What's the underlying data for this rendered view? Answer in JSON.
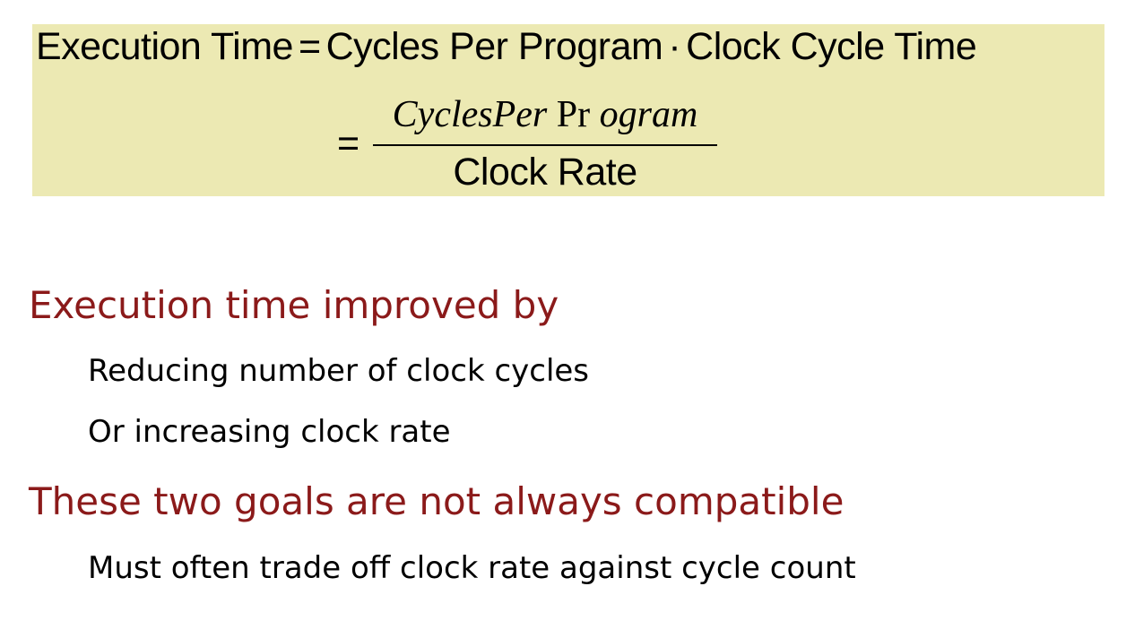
{
  "formula": {
    "line1": {
      "lhs": "Execution Time",
      "eq": "=",
      "term1": "Cycles Per Program",
      "dot": "·",
      "term2": "Clock Cycle Time"
    },
    "line2": {
      "eq": "=",
      "numerator": {
        "part1": "CyclesPer",
        "part2": "Pr",
        "part3": "ogram"
      },
      "denominator": "Clock Rate"
    }
  },
  "bullets": [
    {
      "heading": "Execution time improved by",
      "items": [
        "Reducing number of clock cycles",
        "Or increasing clock rate"
      ]
    },
    {
      "heading": "These two goals are not always compatible",
      "items": [
        "Must often trade off clock rate against cycle count"
      ]
    }
  ]
}
